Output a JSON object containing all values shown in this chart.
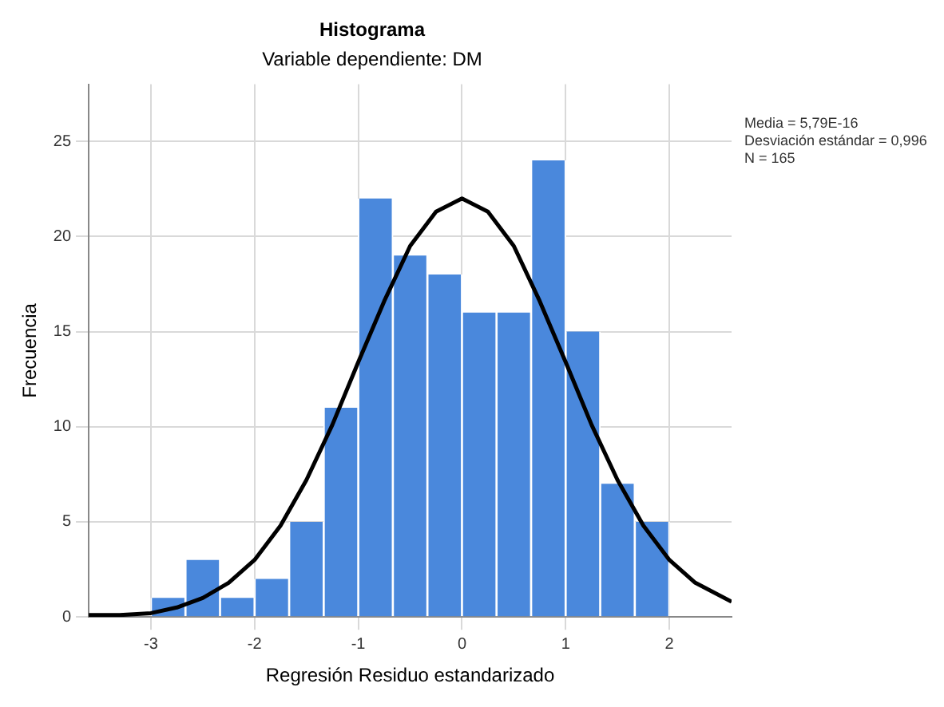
{
  "chart_data": {
    "type": "histogram",
    "title": "Histograma",
    "subtitle": "Variable dependiente: DM",
    "xlabel": "Regresión Residuo estandarizado",
    "ylabel": "Frecuencia",
    "bins": [
      -3,
      -2.6667,
      -2.3333,
      -2,
      -1.6667,
      -1.3333,
      -1,
      -0.6667,
      -0.3333,
      0,
      0.3333,
      0.6667,
      1,
      1.3333,
      1.6667,
      2
    ],
    "values": [
      1,
      3,
      1,
      2,
      5,
      11,
      22,
      19,
      18,
      16,
      16,
      24,
      15,
      7,
      5
    ],
    "color": "#4a88dc",
    "series": [
      {
        "type": "line",
        "color": "#000000",
        "x": [
          -3.6,
          -3.3,
          -3,
          -2.75,
          -2.5,
          -2.25,
          -2,
          -1.75,
          -1.5,
          -1.25,
          -1,
          -0.75,
          -0.5,
          -0.25,
          0,
          0.25,
          0.5,
          0.75,
          1,
          1.25,
          1.5,
          1.75,
          2,
          2.25,
          2.6
        ],
        "values": [
          0.1,
          0.1,
          0.2,
          0.5,
          1,
          1.8,
          3,
          4.8,
          7.2,
          10.1,
          13.4,
          16.6,
          19.5,
          21.3,
          22,
          21.3,
          19.5,
          16.6,
          13.4,
          10.1,
          7.2,
          4.8,
          3,
          1.8,
          0.8
        ]
      }
    ],
    "marker": "none",
    "line_style": "solid",
    "xlim": [
      -3.6,
      2.6
    ],
    "xticks": [
      -3,
      -2,
      -1,
      0,
      1,
      2
    ],
    "ylim": [
      0,
      28
    ],
    "yticks": [
      0,
      5,
      10,
      15,
      20,
      25
    ],
    "grid": true,
    "legend": false,
    "annotations": [
      "Media = 5,79E-16",
      "Desviación estándar = 0,996",
      "N = 165"
    ]
  }
}
